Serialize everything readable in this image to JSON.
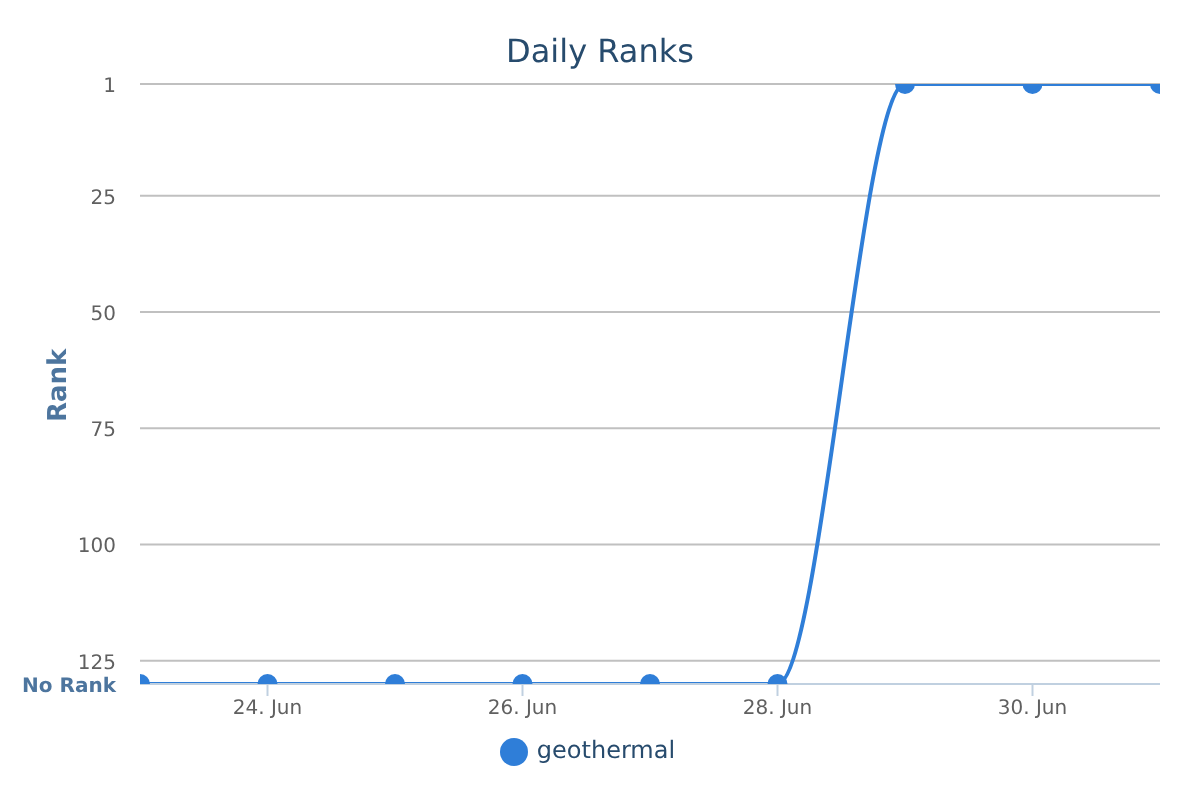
{
  "chart_data": {
    "type": "line",
    "title": "Daily Ranks",
    "ylabel": "Rank",
    "x": [
      "--06-23",
      "--06-24",
      "--06-25",
      "--06-26",
      "--06-27",
      "--06-28",
      "--06-29",
      "--06-30",
      "--07-01"
    ],
    "series": [
      {
        "name": "geothermal",
        "color": "#2f7ed8",
        "values": [
          130,
          130,
          130,
          130,
          130,
          130,
          1,
          1,
          1
        ]
      }
    ],
    "xlim": [
      "--06-23",
      "--07-01"
    ],
    "xticks": [
      {
        "value": "--06-24",
        "label": "24. Jun"
      },
      {
        "value": "--06-26",
        "label": "26. Jun"
      },
      {
        "value": "--06-28",
        "label": "28. Jun"
      },
      {
        "value": "--06-30",
        "label": "30. Jun"
      }
    ],
    "ylim": [
      130,
      1
    ],
    "yticks": [
      1,
      25,
      50,
      75,
      100,
      125,
      {
        "value": 130,
        "label": "No Rank"
      }
    ],
    "grid": "y",
    "legend": "bottom",
    "marker": "circle",
    "line_style": "solid"
  }
}
